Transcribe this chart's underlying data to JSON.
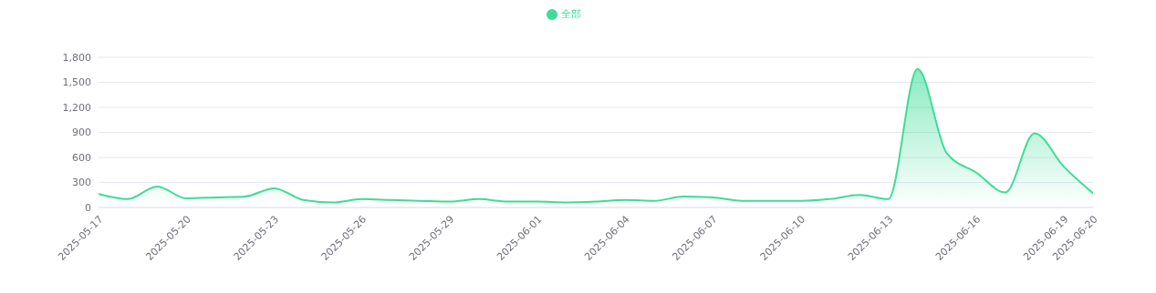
{
  "chart_data": {
    "type": "area",
    "x": [
      "2025-05-17",
      "2025-05-18",
      "2025-05-19",
      "2025-05-20",
      "2025-05-21",
      "2025-05-22",
      "2025-05-23",
      "2025-05-24",
      "2025-05-25",
      "2025-05-26",
      "2025-05-27",
      "2025-05-28",
      "2025-05-29",
      "2025-05-30",
      "2025-05-31",
      "2025-06-01",
      "2025-06-02",
      "2025-06-03",
      "2025-06-04",
      "2025-06-05",
      "2025-06-06",
      "2025-06-07",
      "2025-06-08",
      "2025-06-09",
      "2025-06-10",
      "2025-06-11",
      "2025-06-12",
      "2025-06-13",
      "2025-06-14",
      "2025-06-15",
      "2025-06-16",
      "2025-06-17",
      "2025-06-18",
      "2025-06-19",
      "2025-06-20"
    ],
    "series": [
      {
        "name": "全部",
        "color": "#3ddc97",
        "values": [
          160,
          100,
          250,
          110,
          120,
          130,
          230,
          90,
          60,
          100,
          90,
          80,
          70,
          100,
          70,
          70,
          60,
          70,
          90,
          80,
          130,
          120,
          80,
          80,
          80,
          100,
          150,
          100,
          1660,
          650,
          420,
          180,
          890,
          490,
          170
        ]
      }
    ],
    "xlim": [
      "2025-05-17",
      "2025-06-20"
    ],
    "xticks": [
      "2025-05-17",
      "2025-05-20",
      "2025-05-23",
      "2025-05-26",
      "2025-05-29",
      "2025-06-01",
      "2025-06-04",
      "2025-06-07",
      "2025-06-10",
      "2025-06-13",
      "2025-06-16",
      "2025-06-19",
      "2025-06-20"
    ],
    "ylim": [
      0,
      1800
    ],
    "yticks": [
      {
        "value": 0,
        "label": "0"
      },
      {
        "value": 300,
        "label": "300"
      },
      {
        "value": 600,
        "label": "600"
      },
      {
        "value": 900,
        "label": "900"
      },
      {
        "value": 1200,
        "label": "1,200"
      },
      {
        "value": 1500,
        "label": "1,500"
      },
      {
        "value": 1800,
        "label": "1,800"
      }
    ],
    "grid": "y",
    "legend": "top",
    "marker": "none",
    "line_style": "solid"
  }
}
